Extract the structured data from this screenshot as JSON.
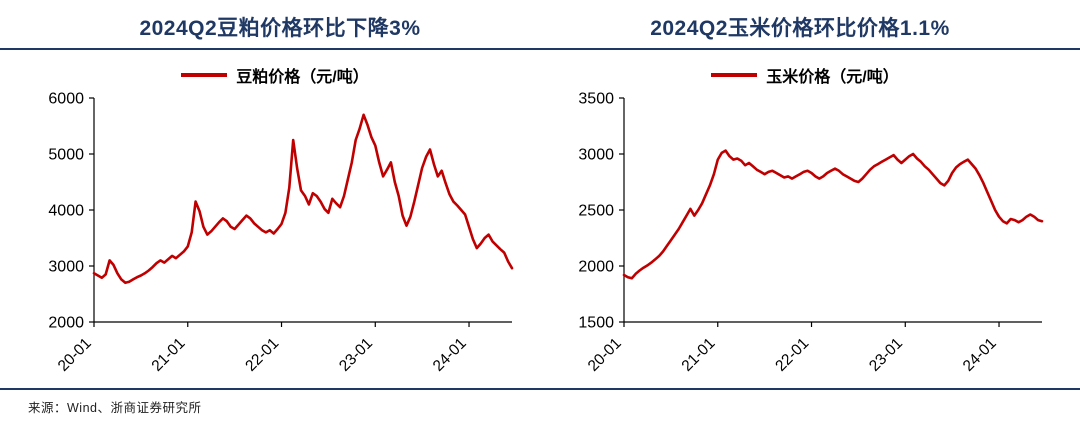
{
  "colors": {
    "accent": "#1F3864",
    "line": "#C00000",
    "axis": "#000000"
  },
  "source": "来源：Wind、浙商证券研究所",
  "chart_data": [
    {
      "type": "line",
      "title": "2024Q2豆粕价格环比下降3%",
      "legend": "豆粕价格（元/吨）",
      "ylabel": "元/吨",
      "ylim": [
        2000,
        6000
      ],
      "yticks": [
        2000,
        3000,
        4000,
        5000,
        6000
      ],
      "xticks": [
        "20-01",
        "21-01",
        "22-01",
        "23-01",
        "24-01"
      ],
      "xtick_indices": [
        0,
        24,
        48,
        72,
        96
      ],
      "grid": false,
      "legend_position": "top",
      "values": [
        2870,
        2830,
        2790,
        2850,
        3100,
        3020,
        2870,
        2760,
        2700,
        2720,
        2760,
        2800,
        2830,
        2870,
        2920,
        2980,
        3050,
        3100,
        3060,
        3120,
        3180,
        3140,
        3200,
        3260,
        3350,
        3600,
        4150,
        3980,
        3700,
        3560,
        3620,
        3700,
        3780,
        3850,
        3800,
        3700,
        3660,
        3740,
        3820,
        3900,
        3850,
        3760,
        3700,
        3640,
        3600,
        3640,
        3580,
        3660,
        3750,
        3950,
        4400,
        5250,
        4750,
        4350,
        4250,
        4100,
        4300,
        4250,
        4150,
        4020,
        3950,
        4200,
        4120,
        4050,
        4250,
        4550,
        4850,
        5250,
        5450,
        5700,
        5520,
        5300,
        5150,
        4850,
        4600,
        4720,
        4850,
        4500,
        4250,
        3900,
        3720,
        3880,
        4150,
        4450,
        4750,
        4950,
        5080,
        4820,
        4600,
        4700,
        4480,
        4280,
        4150,
        4080,
        4000,
        3920,
        3700,
        3480,
        3320,
        3400,
        3500,
        3560,
        3440,
        3370,
        3300,
        3240,
        3080,
        2960
      ]
    },
    {
      "type": "line",
      "title": "2024Q2玉米价格环比价格1.1%",
      "legend": "玉米价格（元/吨）",
      "ylabel": "元/吨",
      "ylim": [
        1500,
        3500
      ],
      "yticks": [
        1500,
        2000,
        2500,
        3000,
        3500
      ],
      "xticks": [
        "20-01",
        "21-01",
        "22-01",
        "23-01",
        "24-01"
      ],
      "xtick_indices": [
        0,
        24,
        48,
        72,
        96
      ],
      "grid": false,
      "legend_position": "top",
      "values": [
        1920,
        1900,
        1890,
        1930,
        1960,
        1985,
        2005,
        2030,
        2060,
        2090,
        2130,
        2180,
        2230,
        2280,
        2330,
        2390,
        2450,
        2510,
        2450,
        2500,
        2560,
        2640,
        2720,
        2820,
        2950,
        3010,
        3030,
        2980,
        2950,
        2960,
        2940,
        2900,
        2920,
        2890,
        2860,
        2840,
        2820,
        2840,
        2850,
        2830,
        2810,
        2790,
        2800,
        2780,
        2800,
        2820,
        2840,
        2850,
        2830,
        2800,
        2780,
        2800,
        2830,
        2850,
        2870,
        2850,
        2820,
        2800,
        2780,
        2760,
        2750,
        2780,
        2820,
        2860,
        2890,
        2910,
        2930,
        2950,
        2970,
        2990,
        2950,
        2920,
        2950,
        2980,
        3000,
        2960,
        2930,
        2890,
        2860,
        2820,
        2780,
        2740,
        2720,
        2760,
        2830,
        2880,
        2910,
        2930,
        2950,
        2910,
        2870,
        2810,
        2740,
        2660,
        2580,
        2500,
        2440,
        2400,
        2380,
        2420,
        2410,
        2390,
        2410,
        2440,
        2460,
        2440,
        2410,
        2400
      ]
    }
  ]
}
